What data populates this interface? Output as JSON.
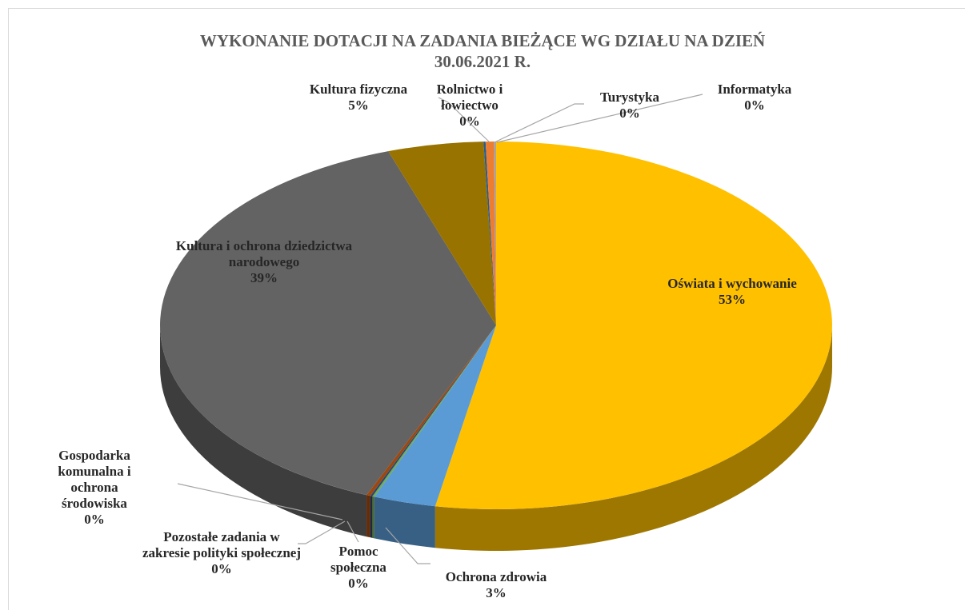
{
  "chart_data": {
    "type": "pie",
    "title": "WYKONANIE DOTACJI NA ZADANIA BIEŻĄCE WG DZIAŁU NA DZIEŃ 30.06.2021 R.",
    "categories": [
      "Oświata i wychowanie",
      "Ochrona zdrowia",
      "Pomoc społeczna",
      "Pozostałe zadania w zakresie polityki społecznej",
      "Gospodarka komunalna i ochrona środowiska",
      "Kultura i ochrona dziedzictwa narodowego",
      "Kultura fizyczna",
      "Rolnictwo i łowiectwo",
      "Turystyka",
      "Informatyka"
    ],
    "values": [
      52.9,
      3.0,
      0.1,
      0.1,
      0.2,
      38.5,
      4.6,
      0.1,
      0.4,
      0.1
    ],
    "value_labels": [
      "53%",
      "3%",
      "0%",
      "0%",
      "0%",
      "39%",
      "5%",
      "0%",
      "0%",
      "0%"
    ],
    "colors": [
      "#ffc000",
      "#5b9bd5",
      "#70ad47",
      "#264478",
      "#9e480e",
      "#636363",
      "#997300",
      "#255e91",
      "#ed7d31",
      "#a5a5a5"
    ]
  }
}
